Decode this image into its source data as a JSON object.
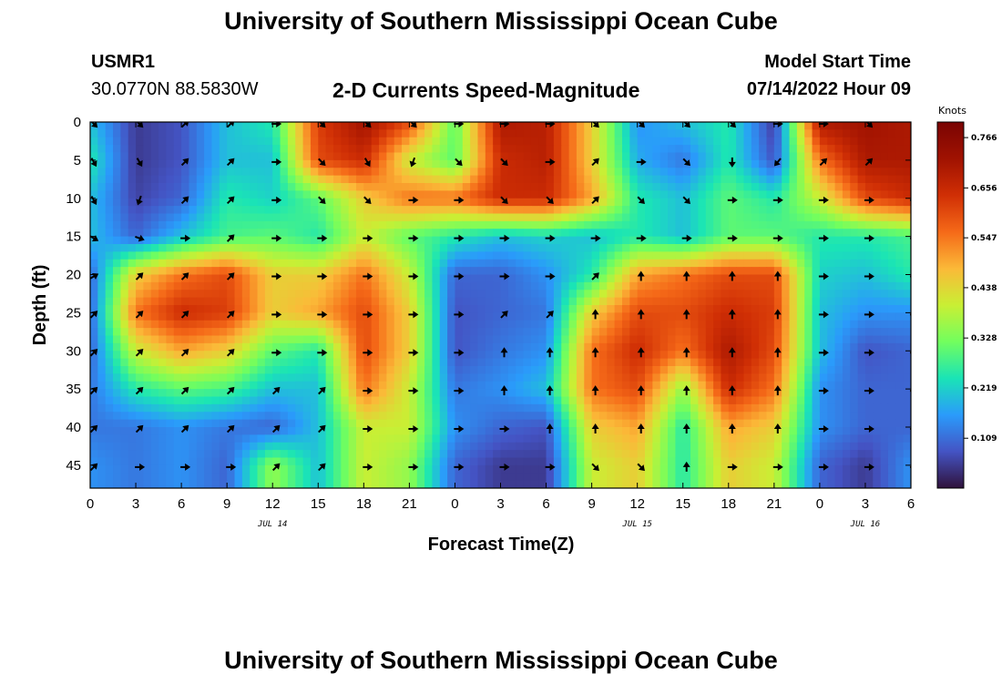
{
  "header": {
    "title": "University of Southern Mississippi Ocean Cube",
    "station_id": "USMR1",
    "coordinates": "30.0770N  88.5830W",
    "plot_title": "2-D Currents Speed-Magnitude",
    "model_start_label": "Model Start Time",
    "model_start_value": "07/14/2022 Hour 09"
  },
  "footer": {
    "title": "University of Southern Mississippi Ocean Cube"
  },
  "chart_data": {
    "type": "heatmap",
    "title": "2-D Currents Speed-Magnitude",
    "xlabel": "Forecast Time(Z)",
    "ylabel": "Depth (ft)",
    "x_tick_labels": [
      "0",
      "3",
      "6",
      "9",
      "12",
      "15",
      "18",
      "21",
      "0",
      "3",
      "6",
      "9",
      "12",
      "15",
      "18",
      "21",
      "0",
      "3",
      "6"
    ],
    "x_range_hours": [
      0,
      54
    ],
    "date_labels": [
      {
        "label": "JUL 14",
        "hour": 12
      },
      {
        "label": "JUL 15",
        "hour": 36
      },
      {
        "label": "JUL 16",
        "hour": 51
      }
    ],
    "y_tick_labels": [
      "0",
      "5",
      "10",
      "15",
      "20",
      "25",
      "30",
      "35",
      "40",
      "45"
    ],
    "y_range_ft": [
      0,
      48
    ],
    "colorbar": {
      "label": "Knots",
      "ticks": [
        "0.766",
        "0.656",
        "0.547",
        "0.438",
        "0.328",
        "0.219",
        "0.109"
      ],
      "tick_values": [
        0.766,
        0.656,
        0.547,
        0.438,
        0.328,
        0.219,
        0.109
      ],
      "range": [
        0.0,
        0.8
      ],
      "colors": [
        "#30123b",
        "#4454c4",
        "#2a9bfb",
        "#1ae4b6",
        "#72fe5e",
        "#c9ef34",
        "#fbb938",
        "#f56918",
        "#d02f05",
        "#a01201",
        "#7a0403"
      ]
    },
    "speed_grid": {
      "hours": [
        0,
        3,
        6,
        9,
        12,
        15,
        18,
        21,
        24,
        27,
        30,
        33,
        36,
        39,
        42,
        45,
        48,
        51,
        54
      ],
      "depths_ft": [
        0,
        5,
        10,
        15,
        20,
        25,
        30,
        35,
        40,
        45
      ],
      "values_knots": [
        [
          0.2,
          0.05,
          0.08,
          0.2,
          0.25,
          0.62,
          0.72,
          0.6,
          0.3,
          0.7,
          0.68,
          0.45,
          0.15,
          0.2,
          0.25,
          0.05,
          0.7,
          0.72,
          0.7
        ],
        [
          0.25,
          0.05,
          0.08,
          0.2,
          0.2,
          0.6,
          0.65,
          0.4,
          0.3,
          0.65,
          0.68,
          0.45,
          0.18,
          0.12,
          0.25,
          0.08,
          0.55,
          0.7,
          0.7
        ],
        [
          0.2,
          0.06,
          0.1,
          0.25,
          0.22,
          0.3,
          0.45,
          0.55,
          0.55,
          0.65,
          0.65,
          0.5,
          0.25,
          0.2,
          0.3,
          0.25,
          0.4,
          0.6,
          0.65
        ],
        [
          0.2,
          0.1,
          0.2,
          0.28,
          0.3,
          0.25,
          0.4,
          0.3,
          0.25,
          0.2,
          0.22,
          0.2,
          0.25,
          0.2,
          0.3,
          0.3,
          0.25,
          0.25,
          0.28
        ],
        [
          0.1,
          0.45,
          0.55,
          0.6,
          0.45,
          0.45,
          0.55,
          0.4,
          0.1,
          0.1,
          0.15,
          0.25,
          0.5,
          0.55,
          0.6,
          0.6,
          0.22,
          0.2,
          0.25
        ],
        [
          0.1,
          0.55,
          0.65,
          0.62,
          0.45,
          0.5,
          0.6,
          0.45,
          0.08,
          0.1,
          0.12,
          0.45,
          0.6,
          0.6,
          0.65,
          0.62,
          0.2,
          0.15,
          0.15
        ],
        [
          0.1,
          0.4,
          0.5,
          0.45,
          0.3,
          0.25,
          0.6,
          0.45,
          0.08,
          0.12,
          0.15,
          0.55,
          0.65,
          0.55,
          0.7,
          0.6,
          0.2,
          0.08,
          0.1
        ],
        [
          0.12,
          0.25,
          0.3,
          0.28,
          0.2,
          0.2,
          0.55,
          0.4,
          0.12,
          0.15,
          0.2,
          0.55,
          0.6,
          0.35,
          0.65,
          0.55,
          0.15,
          0.1,
          0.1
        ],
        [
          0.12,
          0.12,
          0.15,
          0.12,
          0.1,
          0.2,
          0.4,
          0.4,
          0.15,
          0.1,
          0.08,
          0.45,
          0.5,
          0.25,
          0.5,
          0.45,
          0.15,
          0.1,
          0.1
        ],
        [
          0.15,
          0.12,
          0.15,
          0.1,
          0.35,
          0.2,
          0.4,
          0.35,
          0.1,
          0.05,
          0.05,
          0.4,
          0.45,
          0.25,
          0.45,
          0.4,
          0.1,
          0.05,
          0.15
        ]
      ]
    },
    "vector_directions_deg": [
      [
        135,
        135,
        45,
        45,
        90,
        135,
        135,
        135,
        90,
        90,
        90,
        135,
        135,
        135,
        135,
        90,
        90,
        135,
        135
      ],
      [
        150,
        150,
        45,
        45,
        90,
        135,
        150,
        200,
        135,
        135,
        90,
        45,
        90,
        135,
        180,
        220,
        45,
        45,
        45
      ],
      [
        150,
        200,
        45,
        45,
        90,
        135,
        135,
        90,
        90,
        135,
        135,
        45,
        135,
        135,
        90,
        90,
        90,
        90,
        90
      ],
      [
        120,
        110,
        90,
        45,
        90,
        90,
        90,
        90,
        90,
        90,
        90,
        90,
        90,
        90,
        90,
        90,
        90,
        90,
        90
      ],
      [
        60,
        45,
        45,
        45,
        90,
        90,
        90,
        90,
        90,
        90,
        90,
        45,
        0,
        0,
        0,
        0,
        90,
        90,
        90
      ],
      [
        45,
        45,
        45,
        45,
        90,
        90,
        90,
        90,
        90,
        45,
        45,
        0,
        0,
        0,
        0,
        0,
        90,
        90,
        90
      ],
      [
        45,
        45,
        45,
        45,
        90,
        90,
        90,
        90,
        90,
        0,
        0,
        0,
        0,
        0,
        0,
        0,
        90,
        90,
        90
      ],
      [
        45,
        45,
        45,
        45,
        45,
        45,
        90,
        90,
        90,
        0,
        0,
        0,
        0,
        0,
        0,
        0,
        90,
        90,
        90
      ],
      [
        45,
        45,
        45,
        45,
        45,
        45,
        90,
        90,
        90,
        90,
        0,
        0,
        0,
        0,
        0,
        0,
        90,
        90,
        90
      ],
      [
        45,
        90,
        90,
        90,
        45,
        45,
        90,
        90,
        90,
        90,
        90,
        135,
        135,
        0,
        90,
        90,
        90,
        90,
        90
      ]
    ]
  }
}
